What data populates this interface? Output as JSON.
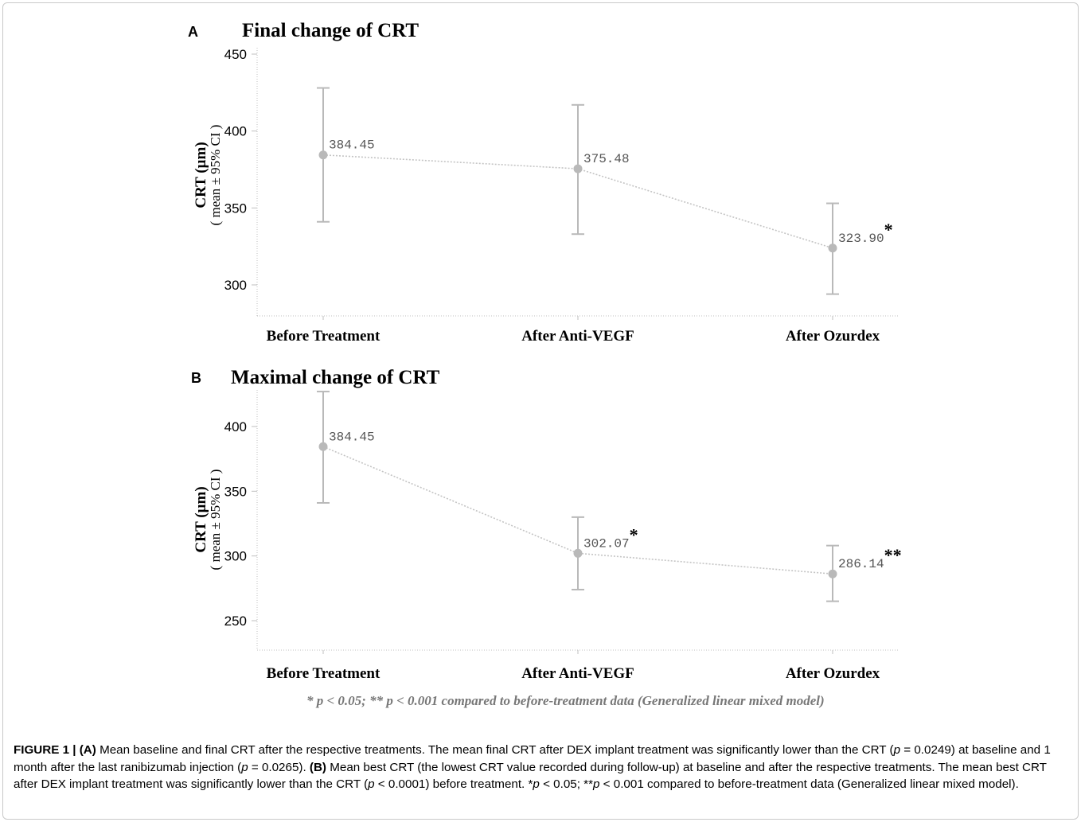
{
  "chart_data": [
    {
      "panel": "A",
      "type": "line",
      "title": "Final change of CRT",
      "ylabel": "CRT (µm)",
      "ylabel_sub": "( mean ± 95% CI )",
      "categories": [
        "Before Treatment",
        "After Anti-VEGF",
        "After Ozurdex"
      ],
      "yticks": [
        300,
        350,
        400,
        450
      ],
      "ylim": [
        280,
        455
      ],
      "series": [
        {
          "values": [
            384.45,
            375.48,
            323.9
          ],
          "labels": [
            "384.45",
            "375.48",
            "323.90"
          ],
          "ci_low": [
            341,
            333,
            294
          ],
          "ci_high": [
            428,
            417,
            353
          ],
          "markers": [
            "",
            "",
            "*"
          ]
        }
      ],
      "grid": false
    },
    {
      "panel": "B",
      "type": "line",
      "title": "Maximal change of CRT",
      "ylabel": "CRT (µm)",
      "ylabel_sub": "( mean ± 95% CI )",
      "categories": [
        "Before Treatment",
        "After Anti-VEGF",
        "After Ozurdex"
      ],
      "yticks": [
        250,
        300,
        350,
        400
      ],
      "ylim": [
        228,
        428
      ],
      "series": [
        {
          "values": [
            384.45,
            302.07,
            286.14
          ],
          "labels": [
            "384.45",
            "302.07",
            "286.14"
          ],
          "ci_low": [
            341,
            274,
            265
          ],
          "ci_high": [
            427,
            330,
            308
          ],
          "markers": [
            "",
            "*",
            "**"
          ]
        }
      ],
      "grid": false
    }
  ],
  "footnote": "* p < 0.05; ** p < 0.001 compared to before-treatment data (Generalized linear mixed model)",
  "caption": {
    "label": "FIGURE 1 |",
    "a_tag": "(A)",
    "a_text_1": "Mean baseline and final CRT after the respective treatments. The mean final CRT after DEX implant treatment was significantly lower than the CRT (",
    "p_sym": "p",
    "a_text_2": " = 0.0249) at baseline and 1 month after the last ranibizumab injection (",
    "a_text_3": " = 0.0265). ",
    "b_tag": "(B)",
    "b_text_1": " Mean best CRT (the lowest CRT value recorded during follow-up) at baseline and after the respective treatments. The mean best CRT after DEX implant treatment was significantly lower than the CRT (",
    "b_text_2": " < 0.0001) before treatment. *",
    "b_text_3": " < 0.05; **",
    "b_text_4": " < 0.001 compared to before-treatment data (Generalized linear mixed model)."
  },
  "colors": {
    "marker": "#b9b9b9",
    "errorbar": "#b9b9b9",
    "line": "#c4c4c4",
    "axis": "#bfbfbf",
    "data_label": "#555555"
  }
}
